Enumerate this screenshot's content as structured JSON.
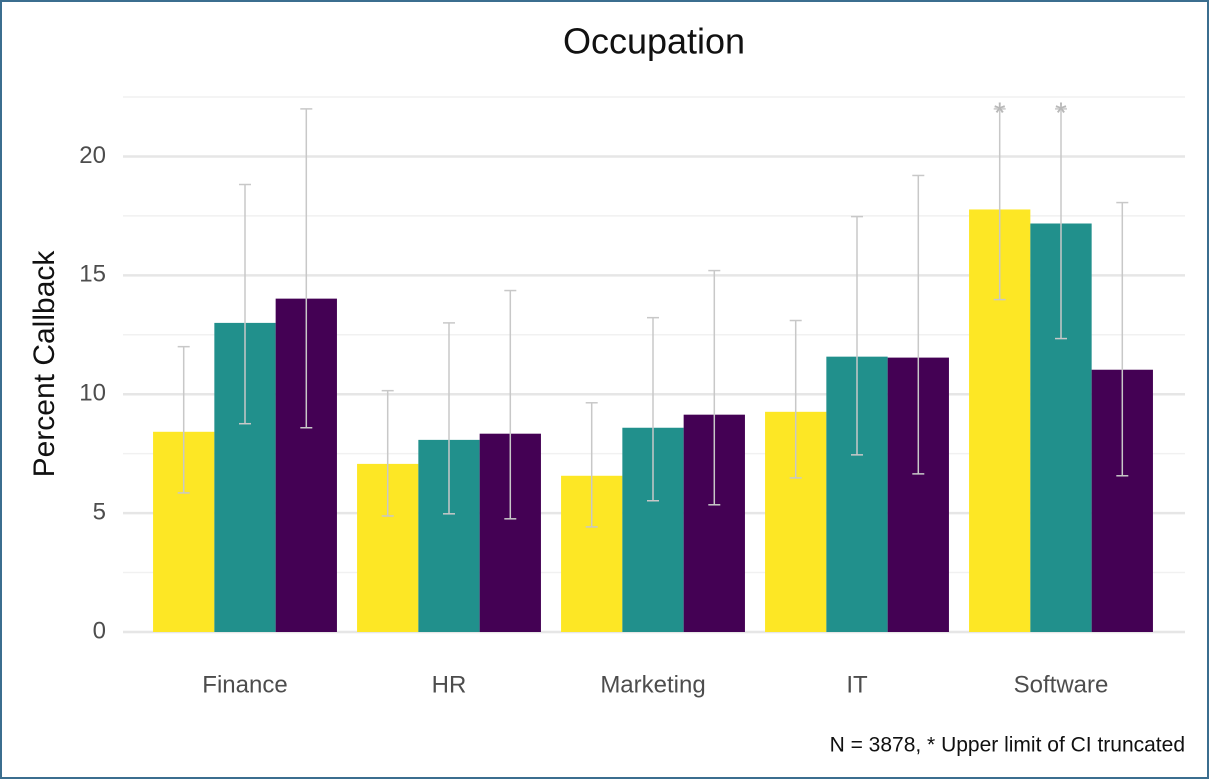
{
  "chart_data": {
    "type": "bar",
    "title": "Occupation",
    "ylabel": "Percent Callback",
    "caption": "N = 3878, * Upper limit of CI truncated",
    "categories": [
      "Finance",
      "HR",
      "Marketing",
      "IT",
      "Software"
    ],
    "series": [
      {
        "color": "#fde725",
        "values": [
          8.42,
          7.07,
          6.57,
          9.26,
          17.77
        ],
        "lower": [
          5.85,
          4.88,
          4.42,
          6.48,
          13.98
        ],
        "upper": [
          12.0,
          10.15,
          9.64,
          13.1,
          22.0
        ]
      },
      {
        "color": "#21908c",
        "values": [
          13.0,
          8.08,
          8.59,
          11.58,
          17.18
        ],
        "lower": [
          8.76,
          4.97,
          5.52,
          7.45,
          12.34
        ],
        "upper": [
          18.82,
          13.0,
          13.22,
          17.47,
          22.0
        ]
      },
      {
        "color": "#440154",
        "values": [
          14.02,
          8.34,
          9.14,
          11.54,
          11.03
        ],
        "lower": [
          8.59,
          4.76,
          5.35,
          6.65,
          6.57
        ],
        "upper": [
          22.0,
          14.36,
          15.2,
          19.2,
          18.06
        ]
      }
    ],
    "annotations": [
      {
        "text": "*",
        "series": 0,
        "category": 4
      },
      {
        "text": "*",
        "series": 1,
        "category": 4
      }
    ],
    "ylim": [
      0,
      22.5
    ],
    "yticks": [
      0,
      5,
      10,
      15,
      20
    ],
    "minor_grid": [
      2.5,
      7.5,
      12.5,
      17.5,
      22.5
    ],
    "grid": true,
    "errorbar_color": "#c8c8c8"
  }
}
